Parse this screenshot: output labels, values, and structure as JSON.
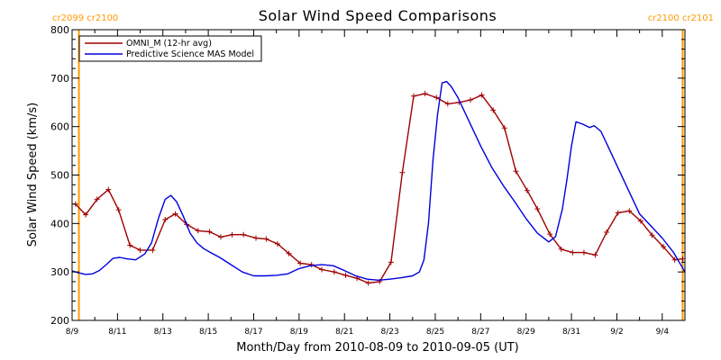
{
  "colors": {
    "omni": "#a00000",
    "model": "#0000dd",
    "boundary": "#ff9900"
  },
  "chart_data": {
    "type": "line",
    "title": "Solar Wind Speed Comparisons",
    "xlabel": "Month/Day from 2010-08-09 to 2010-09-05 (UT)",
    "ylabel": "Solar Wind Speed (km/s)",
    "xlim": [
      0,
      27
    ],
    "ylim": [
      200,
      800
    ],
    "yticks": [
      200,
      300,
      400,
      500,
      600,
      700,
      800
    ],
    "xticks": [
      {
        "x": 0,
        "label": "8/9"
      },
      {
        "x": 2,
        "label": "8/11"
      },
      {
        "x": 4,
        "label": "8/13"
      },
      {
        "x": 6,
        "label": "8/15"
      },
      {
        "x": 8,
        "label": "8/17"
      },
      {
        "x": 10,
        "label": "8/19"
      },
      {
        "x": 12,
        "label": "8/21"
      },
      {
        "x": 14,
        "label": "8/23"
      },
      {
        "x": 16,
        "label": "8/25"
      },
      {
        "x": 18,
        "label": "8/27"
      },
      {
        "x": 20,
        "label": "8/29"
      },
      {
        "x": 22,
        "label": "8/31"
      },
      {
        "x": 24,
        "label": "9/2"
      },
      {
        "x": 26,
        "label": "9/4"
      }
    ],
    "carrington_markers": [
      {
        "x": 0.3,
        "label": "cr2099 cr2100"
      },
      {
        "x": 26.9,
        "label": "cr2100 cr2101"
      }
    ],
    "legend_position": "top-left",
    "series": [
      {
        "name": "OMNI_M (12-hr avg)",
        "color_key": "omni",
        "markers": true,
        "x": [
          0.15,
          0.6,
          1.1,
          1.6,
          2.05,
          2.55,
          3.0,
          3.55,
          4.1,
          4.55,
          5.05,
          5.55,
          6.05,
          6.55,
          7.05,
          7.55,
          8.1,
          8.55,
          9.05,
          9.55,
          10.05,
          10.55,
          11.0,
          11.55,
          12.05,
          12.55,
          13.05,
          13.55,
          14.05,
          14.55,
          15.05,
          15.55,
          16.05,
          16.55,
          17.05,
          17.55,
          18.05,
          18.55,
          19.05,
          19.55,
          20.05,
          20.5,
          21.05,
          21.55,
          22.05,
          22.55,
          23.05,
          23.55,
          24.05,
          24.55,
          25.05,
          25.55,
          26.05,
          26.55,
          26.9
        ],
        "y": [
          440,
          418,
          450,
          470,
          428,
          355,
          345,
          345,
          408,
          420,
          398,
          385,
          383,
          372,
          377,
          377,
          370,
          368,
          358,
          338,
          318,
          315,
          305,
          300,
          293,
          287,
          277,
          280,
          320,
          505,
          663,
          668,
          660,
          647,
          650,
          655,
          665,
          634,
          597,
          508,
          468,
          430,
          378,
          347,
          340,
          340,
          335,
          382,
          422,
          426,
          405,
          376,
          352,
          325,
          327
        ]
      },
      {
        "name": "Predictive Science MAS Model",
        "color_key": "model",
        "markers": false,
        "x": [
          0.0,
          0.3,
          0.6,
          0.9,
          1.2,
          1.5,
          1.8,
          2.1,
          2.4,
          2.8,
          3.2,
          3.5,
          3.8,
          4.1,
          4.35,
          4.6,
          4.9,
          5.2,
          5.5,
          5.8,
          6.1,
          6.5,
          7.0,
          7.5,
          8.0,
          8.5,
          9.0,
          9.5,
          10.0,
          10.5,
          11.0,
          11.5,
          12.0,
          12.5,
          13.0,
          13.5,
          14.0,
          14.5,
          15.0,
          15.3,
          15.5,
          15.7,
          15.9,
          16.1,
          16.3,
          16.5,
          16.7,
          17.0,
          17.5,
          18.0,
          18.5,
          19.0,
          19.5,
          20.0,
          20.5,
          21.0,
          21.3,
          21.6,
          21.8,
          22.0,
          22.2,
          22.5,
          22.8,
          23.0,
          23.3,
          23.6,
          24.0,
          24.5,
          25.0,
          25.5,
          26.0,
          26.5,
          27.0
        ],
        "y": [
          302,
          298,
          295,
          296,
          303,
          315,
          328,
          330,
          327,
          325,
          337,
          360,
          410,
          450,
          458,
          445,
          415,
          380,
          360,
          348,
          340,
          330,
          315,
          300,
          292,
          292,
          293,
          296,
          307,
          313,
          315,
          313,
          303,
          292,
          285,
          283,
          285,
          288,
          292,
          300,
          325,
          400,
          530,
          625,
          690,
          693,
          683,
          660,
          610,
          560,
          515,
          478,
          445,
          410,
          380,
          362,
          373,
          430,
          490,
          560,
          610,
          605,
          598,
          602,
          590,
          560,
          520,
          470,
          420,
          395,
          370,
          340,
          300
        ]
      }
    ]
  }
}
